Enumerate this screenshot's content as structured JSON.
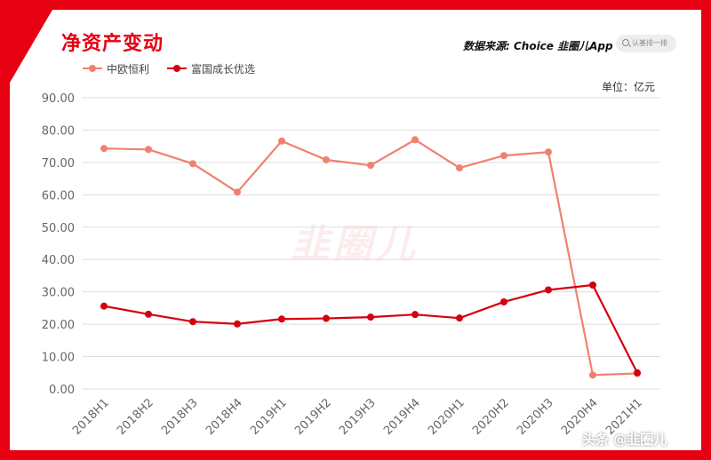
{
  "header": {
    "title": "净资产变动",
    "source": "数据来源: Choice  韭圈儿App",
    "search_placeholder": "认基排一排",
    "unit": "单位：亿元"
  },
  "watermark": "韭圈儿",
  "footer": "头条 @韭圈儿",
  "colors": {
    "frame": "#e60012",
    "series_1": "#f08070",
    "series_2": "#d4000f"
  },
  "chart_data": {
    "type": "line",
    "title": "净资产变动",
    "xlabel": "",
    "ylabel": "单位：亿元",
    "ylim": [
      0,
      90
    ],
    "yticks": [
      "0.00",
      "10.00",
      "20.00",
      "30.00",
      "40.00",
      "50.00",
      "60.00",
      "70.00",
      "80.00",
      "90.00"
    ],
    "grid": true,
    "legend": "top-left",
    "categories": [
      "2018H1",
      "2018H2",
      "2018H3",
      "2018H4",
      "2019H1",
      "2019H2",
      "2019H3",
      "2019H4",
      "2020H1",
      "2020H2",
      "2020H3",
      "2020H4",
      "2021H1"
    ],
    "series": [
      {
        "name": "中欧恒利",
        "color": "#f08070",
        "values": [
          74.3,
          74.0,
          69.6,
          60.8,
          76.6,
          70.8,
          69.1,
          77.0,
          68.3,
          72.1,
          73.2,
          4.3,
          4.8
        ]
      },
      {
        "name": "富国成长优选",
        "color": "#d4000f",
        "values": [
          25.6,
          23.1,
          20.8,
          20.1,
          21.6,
          21.8,
          22.2,
          23.0,
          21.9,
          26.9,
          30.6,
          32.1,
          5.0
        ]
      }
    ]
  }
}
